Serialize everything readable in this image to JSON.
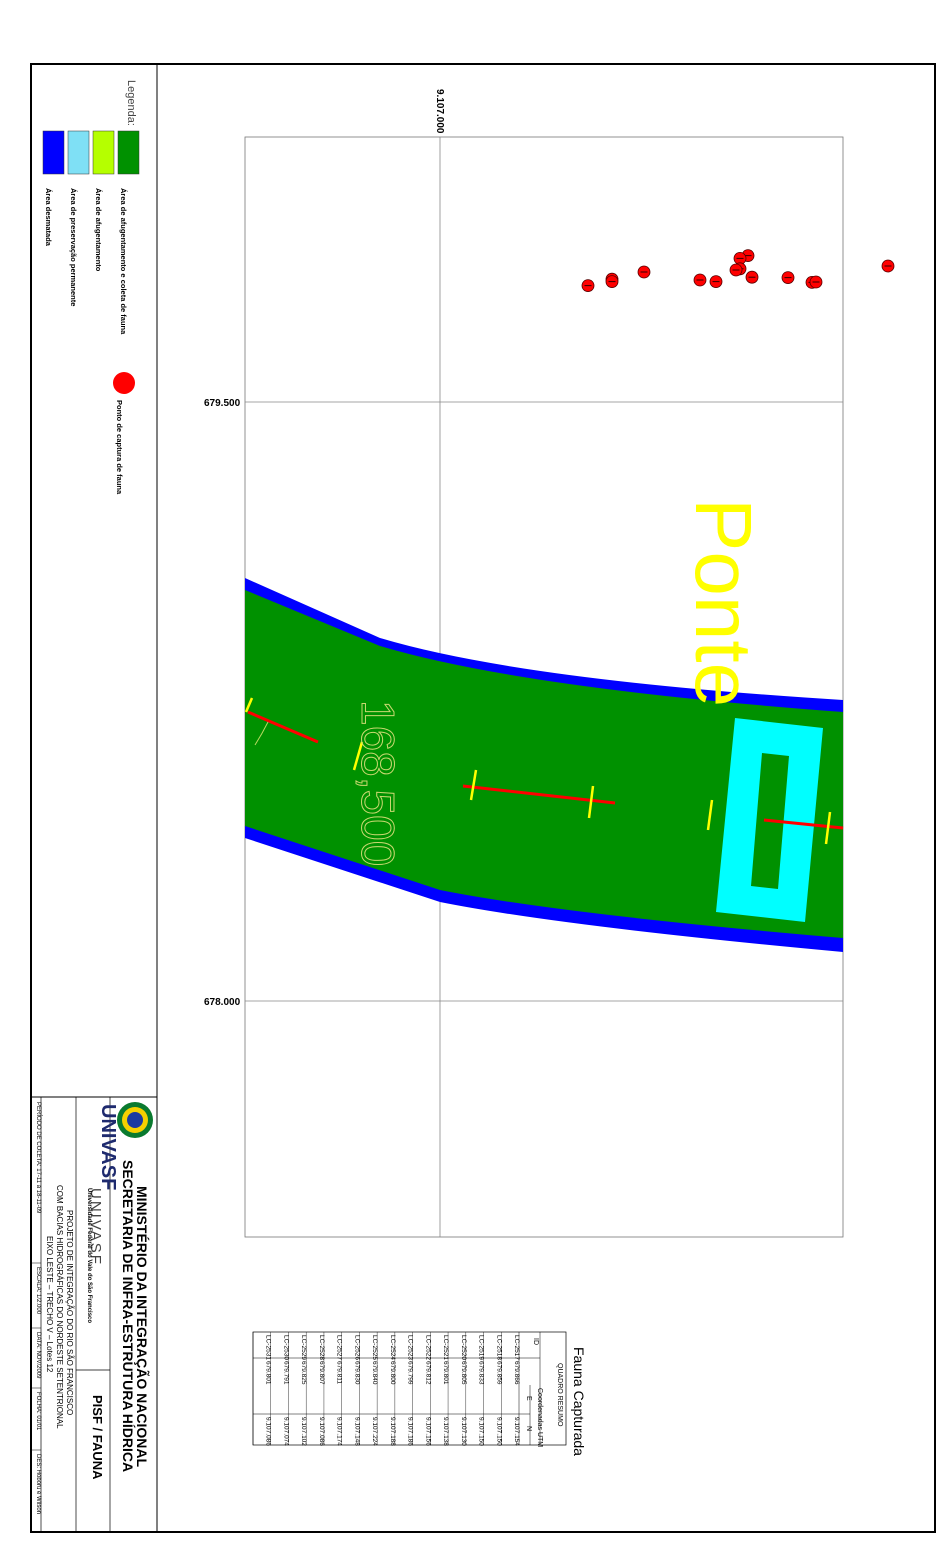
{
  "map": {
    "grid_labels": {
      "vertical_line": "9.107.000",
      "horizontal_line_1": "679.500",
      "horizontal_line_2": "678.000"
    },
    "annotations": {
      "bridge_label": "Ponte",
      "station_label": "168,500"
    },
    "colors": {
      "clearing_and_collection": "#009100",
      "clearing": "#b5ff00",
      "permanent_preservation": "#7fe0f5",
      "deforested": "#0000ff",
      "bridge": "#00ffff",
      "capture_point": "#ff0000",
      "section_mark": "#ffff00",
      "label_yellow": "#ffff00"
    },
    "capture_points": [
      {
        "id": "LC-2517",
        "e": "679.866",
        "n": "9.107.154"
      },
      {
        "id": "LC-2518",
        "e": "679.859",
        "n": "9.107.150"
      },
      {
        "id": "LC-2519",
        "e": "679.833",
        "n": "9.107.150"
      },
      {
        "id": "LC-2520",
        "e": "679.805",
        "n": "9.107.130"
      },
      {
        "id": "LC-2521",
        "e": "679.801",
        "n": "9.107.138"
      },
      {
        "id": "LC-2522",
        "e": "679.812",
        "n": "9.107.156"
      },
      {
        "id": "LC-2523",
        "e": "679.799",
        "n": "9.107.186"
      },
      {
        "id": "LC-2524",
        "e": "679.800",
        "n": "9.107.188"
      },
      {
        "id": "LC-2525",
        "e": "679.840",
        "n": "9.107.224"
      },
      {
        "id": "LC-2526",
        "e": "679.830",
        "n": "9.107.148"
      },
      {
        "id": "LC-2527",
        "e": "679.811",
        "n": "9.107.174"
      },
      {
        "id": "LC-2528",
        "e": "679.807",
        "n": "9.107.086"
      },
      {
        "id": "LC-2529",
        "e": "679.825",
        "n": "9.107.102"
      },
      {
        "id": "LC-2530",
        "e": "679.791",
        "n": "9.107.074"
      },
      {
        "id": "LC-2531",
        "e": "679.801",
        "n": "9.107.086"
      }
    ]
  },
  "legend": {
    "title": "Legenda:",
    "items": [
      {
        "label": "Área de afugentamento e coleta de fauna",
        "color": "#009100"
      },
      {
        "label": "Área de afugentamento",
        "color": "#b5ff00"
      },
      {
        "label": "Área de preservação permanente",
        "color": "#7fe0f5"
      },
      {
        "label": "Área desmatada",
        "color": "#0000ff"
      }
    ],
    "capture_point_label": "Ponto de captura de fauna"
  },
  "summary_table": {
    "title": "Fauna Capturada",
    "heading": "QUADRO RESUMO",
    "col_id": "ID",
    "col_coords": "Coordenadas UTM",
    "col_e": "E",
    "col_n": "N"
  },
  "title_block": {
    "ministry": "MINISTÉRIO DA INTEGRAÇÃO NACIONAL",
    "secretariat": "SECRETARIA DE INFRA-ESTRUTURA HÍDRICA",
    "univasf_logo": "UNIVASF",
    "univasf_name": "UNIVASF",
    "univasf_subtitle": "Universidade Federal do Vale do São Francisco",
    "project_line1": "PROJETO DE INTEGRAÇÃO DO RIO SÃO FRANCISCO",
    "project_line2": "COM BACIAS HIDROGRÁFICAS DO NORDESTE SETENTRIONAL",
    "project_line3": "EIXO LESTE – TRECHO V – Lotes 12",
    "pisf": "PISF / FAUNA",
    "periodo": "PERÍODO DE COLETA: 17-11 a 18-11-09",
    "escala": "ESCALA: 1/2.000",
    "data": "DATA: NOV/2009",
    "folha": "FOLHA: 01/01",
    "des": "DES: Hoboru e Wilson"
  }
}
